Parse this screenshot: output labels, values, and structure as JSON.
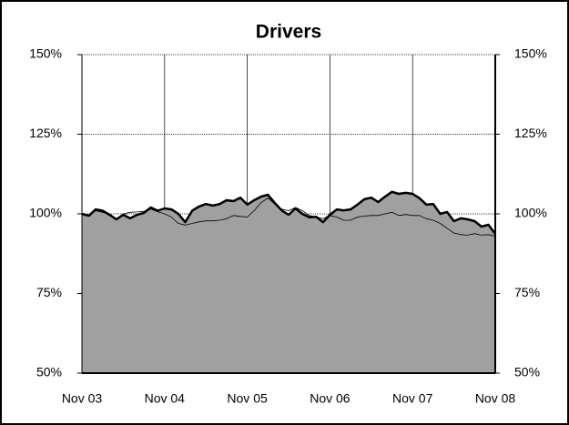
{
  "chart_data": {
    "type": "area",
    "title": "Drivers",
    "categories": [
      "Nov 03",
      null,
      null,
      null,
      null,
      null,
      null,
      null,
      null,
      null,
      null,
      null,
      "Nov 04",
      null,
      null,
      null,
      null,
      null,
      null,
      null,
      null,
      null,
      null,
      null,
      "Nov 05",
      null,
      null,
      null,
      null,
      null,
      null,
      null,
      null,
      null,
      null,
      null,
      "Nov 06",
      null,
      null,
      null,
      null,
      null,
      null,
      null,
      null,
      null,
      null,
      null,
      "Nov 07",
      null,
      null,
      null,
      null,
      null,
      null,
      null,
      null,
      null,
      null,
      null,
      "Nov 08"
    ],
    "series": [
      {
        "color": "#000000",
        "fill": "#a0a0a0",
        "values": [
          100,
          99.4,
          101.4,
          101,
          99.7,
          98.3,
          99.7,
          98.6,
          99.7,
          100.3,
          102,
          101,
          101.7,
          101.4,
          100,
          97.4,
          101,
          102.3,
          103.1,
          102.6,
          103.1,
          104.3,
          104,
          105.1,
          102.9,
          104.3,
          105.4,
          106,
          103.4,
          101.1,
          99.7,
          101.7,
          100,
          98.9,
          99.1,
          97.4,
          99.7,
          101.4,
          101.1,
          101.4,
          102.9,
          104.6,
          105.1,
          103.7,
          105.4,
          106.9,
          106.3,
          106.6,
          106.3,
          104.9,
          102.9,
          103.1,
          100,
          100.6,
          97.7,
          98.6,
          98.3,
          97.7,
          96,
          96.6,
          93.7
        ]
      },
      {
        "color": "#000000",
        "values": [
          100,
          99.5,
          101,
          100.5,
          100,
          98.5,
          100,
          100.5,
          100.6,
          100.8,
          101.5,
          100.7,
          100,
          99,
          97,
          96.5,
          97,
          97.5,
          97.8,
          97.8,
          98,
          98.5,
          99.5,
          99.2,
          99,
          101,
          103.5,
          105,
          103,
          101.5,
          101,
          102,
          101,
          99.5,
          99,
          98.5,
          99.5,
          99,
          98,
          98,
          99,
          99.3,
          99.5,
          99.5,
          100,
          100.5,
          99.5,
          99.8,
          99.5,
          99.5,
          98.5,
          98,
          97,
          95.5,
          94,
          93.5,
          93.3,
          93.8,
          93.3,
          93.5,
          93
        ]
      }
    ],
    "ylim": [
      50,
      150
    ],
    "yticks": [
      {
        "value": 50,
        "label": "50%"
      },
      {
        "value": 75,
        "label": "75%"
      },
      {
        "value": 100,
        "label": "100%"
      },
      {
        "value": 125,
        "label": "125%"
      },
      {
        "value": 150,
        "label": "150%"
      }
    ],
    "y2lim": [
      50,
      150
    ],
    "y2ticks": [
      {
        "value": 50,
        "label": "50%"
      },
      {
        "value": 75,
        "label": "75%"
      },
      {
        "value": 100,
        "label": "100%"
      },
      {
        "value": 125,
        "label": "125%"
      },
      {
        "value": 150,
        "label": "150%"
      }
    ],
    "grid": true
  }
}
